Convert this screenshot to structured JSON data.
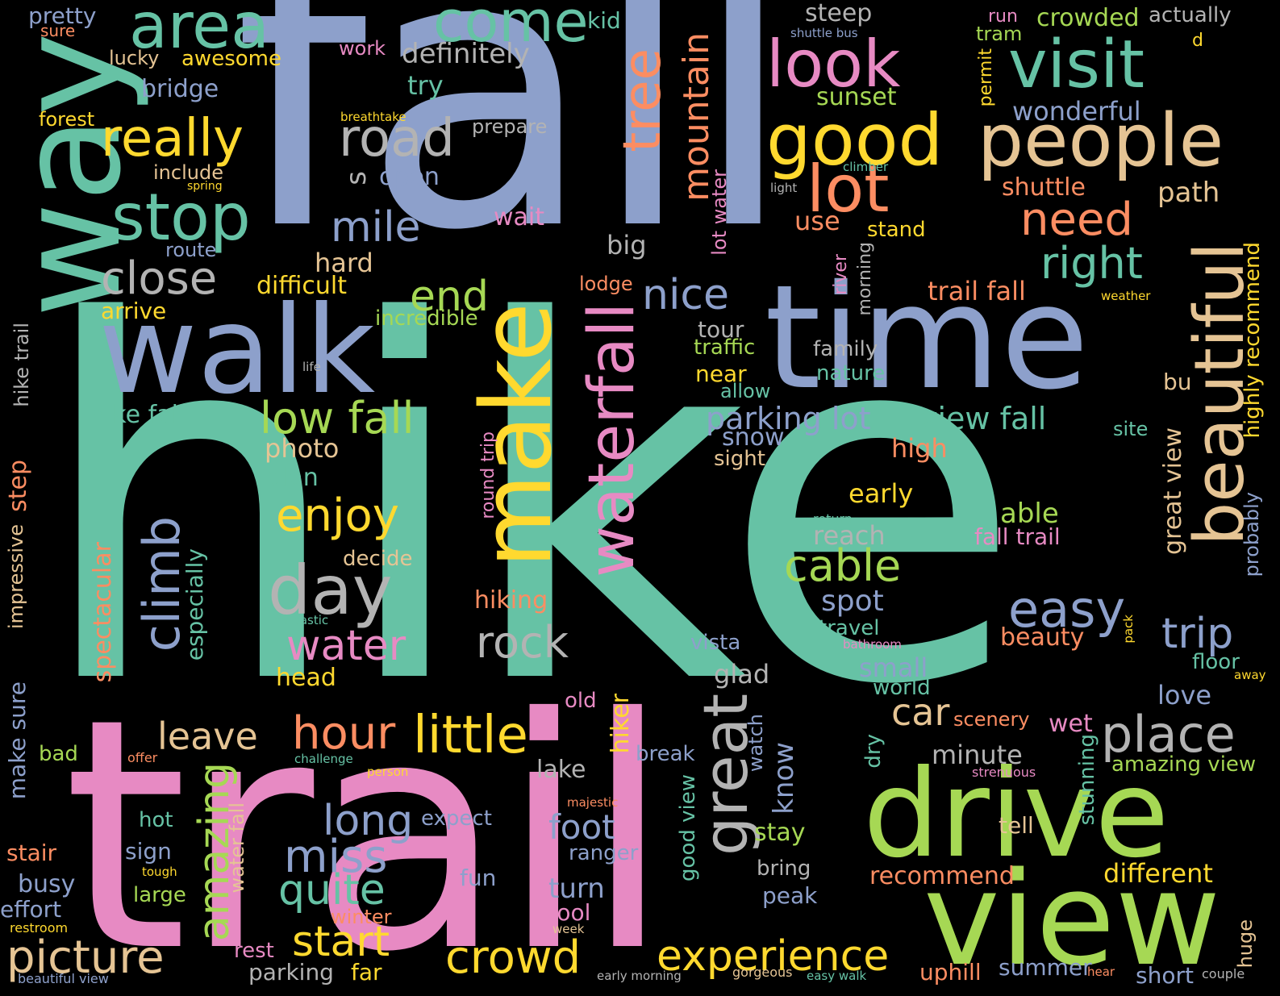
{
  "words": [
    {
      "text": "hike",
      "color": "c1"
    },
    {
      "text": "fall",
      "color": "c3"
    },
    {
      "text": "trail",
      "color": "c4"
    },
    {
      "text": "way",
      "color": "c1"
    },
    {
      "text": "walk",
      "color": "c3"
    },
    {
      "text": "time",
      "color": "c3"
    },
    {
      "text": "view",
      "color": "c5"
    },
    {
      "text": "drive",
      "color": "c5"
    },
    {
      "text": "make",
      "color": "c6"
    },
    {
      "text": "beautiful",
      "color": "c7"
    },
    {
      "text": "waterfall",
      "color": "c4"
    },
    {
      "text": "people",
      "color": "c7"
    },
    {
      "text": "area",
      "color": "c1"
    },
    {
      "text": "come",
      "color": "c1"
    },
    {
      "text": "look",
      "color": "c4"
    },
    {
      "text": "visit",
      "color": "c1"
    },
    {
      "text": "good",
      "color": "c6"
    },
    {
      "text": "lot",
      "color": "c2"
    },
    {
      "text": "stop",
      "color": "c1"
    },
    {
      "text": "really",
      "color": "c6"
    },
    {
      "text": "road",
      "color": "c8"
    },
    {
      "text": "tree",
      "color": "c2"
    },
    {
      "text": "climb",
      "color": "c3"
    },
    {
      "text": "great",
      "color": "c8"
    },
    {
      "text": "day",
      "color": "c8"
    },
    {
      "text": "place",
      "color": "c8"
    },
    {
      "text": "little",
      "color": "c6"
    },
    {
      "text": "hour",
      "color": "c2"
    },
    {
      "text": "crowd",
      "color": "c6"
    },
    {
      "text": "picture",
      "color": "c7"
    },
    {
      "text": "experience",
      "color": "c6"
    },
    {
      "text": "close",
      "color": "c8"
    },
    {
      "text": "mile",
      "color": "c3"
    },
    {
      "text": "end",
      "color": "c5"
    },
    {
      "text": "nice",
      "color": "c3"
    },
    {
      "text": "need",
      "color": "c2"
    },
    {
      "text": "right",
      "color": "c1"
    },
    {
      "text": "easy",
      "color": "c3"
    },
    {
      "text": "trip",
      "color": "c3"
    },
    {
      "text": "mountain",
      "color": "c2"
    },
    {
      "text": "low fall",
      "color": "c5"
    },
    {
      "text": "enjoy",
      "color": "c6"
    },
    {
      "text": "water",
      "color": "c4"
    },
    {
      "text": "rock",
      "color": "c8"
    },
    {
      "text": "cable",
      "color": "c5"
    },
    {
      "text": "amazing",
      "color": "c5"
    },
    {
      "text": "miss",
      "color": "c3"
    },
    {
      "text": "quite",
      "color": "c1"
    },
    {
      "text": "start",
      "color": "c6"
    },
    {
      "text": "long",
      "color": "c3"
    },
    {
      "text": "leave",
      "color": "c7"
    },
    {
      "text": "car",
      "color": "c7"
    },
    {
      "text": "foot",
      "color": "c3"
    },
    {
      "text": "parking lot",
      "color": "c3"
    },
    {
      "text": "view fall",
      "color": "c1"
    },
    {
      "text": "pretty",
      "color": "c3"
    },
    {
      "text": "sure",
      "color": "c2"
    },
    {
      "text": "lucky",
      "color": "c7"
    },
    {
      "text": "awesome",
      "color": "c6"
    },
    {
      "text": "bridge",
      "color": "c3"
    },
    {
      "text": "forest",
      "color": "c6"
    },
    {
      "text": "breathtake",
      "color": "c6"
    },
    {
      "text": "include",
      "color": "c7"
    },
    {
      "text": "spring",
      "color": "c6"
    },
    {
      "text": "route",
      "color": "c3"
    },
    {
      "text": "arrive",
      "color": "c6"
    },
    {
      "text": "difficult",
      "color": "c6"
    },
    {
      "text": "hard",
      "color": "c7"
    },
    {
      "text": "incredible",
      "color": "c5"
    },
    {
      "text": "kid",
      "color": "c1"
    },
    {
      "text": "definitely",
      "color": "c8"
    },
    {
      "text": "work",
      "color": "c4"
    },
    {
      "text": "try",
      "color": "c1"
    },
    {
      "text": "prepare",
      "color": "c8"
    },
    {
      "text": "open",
      "color": "c3"
    },
    {
      "text": "s",
      "color": "c8"
    },
    {
      "text": "wait",
      "color": "c4"
    },
    {
      "text": "big",
      "color": "c8"
    },
    {
      "text": "lodge",
      "color": "c2"
    },
    {
      "text": "steep",
      "color": "c8"
    },
    {
      "text": "shuttle bus",
      "color": "c3"
    },
    {
      "text": "run",
      "color": "c4"
    },
    {
      "text": "tram",
      "color": "c5"
    },
    {
      "text": "crowded",
      "color": "c5"
    },
    {
      "text": "actually",
      "color": "c8"
    },
    {
      "text": "d",
      "color": "c6"
    },
    {
      "text": "sunset",
      "color": "c5"
    },
    {
      "text": "lot water",
      "color": "c4"
    },
    {
      "text": "climber",
      "color": "c1"
    },
    {
      "text": "use",
      "color": "c2"
    },
    {
      "text": "stand",
      "color": "c6"
    },
    {
      "text": "light",
      "color": "c8"
    },
    {
      "text": "wonderful",
      "color": "c3"
    },
    {
      "text": "permit",
      "color": "c6"
    },
    {
      "text": "shuttle",
      "color": "c2"
    },
    {
      "text": "path",
      "color": "c7"
    },
    {
      "text": "river",
      "color": "c4"
    },
    {
      "text": "morning",
      "color": "c8"
    },
    {
      "text": "trail fall",
      "color": "c2"
    },
    {
      "text": "weather",
      "color": "c6"
    },
    {
      "text": "highly recommend",
      "color": "c6"
    },
    {
      "text": "probably",
      "color": "c3"
    },
    {
      "text": "tour",
      "color": "c8"
    },
    {
      "text": "traffic",
      "color": "c5"
    },
    {
      "text": "near",
      "color": "c6"
    },
    {
      "text": "family",
      "color": "c8"
    },
    {
      "text": "nature",
      "color": "c1"
    },
    {
      "text": "allow",
      "color": "c1"
    },
    {
      "text": "bu",
      "color": "c7"
    },
    {
      "text": "snow",
      "color": "c3"
    },
    {
      "text": "sight",
      "color": "c7"
    },
    {
      "text": "high",
      "color": "c2"
    },
    {
      "text": "site",
      "color": "c1"
    },
    {
      "text": "great view",
      "color": "c7"
    },
    {
      "text": "early",
      "color": "c6"
    },
    {
      "text": "able",
      "color": "c5"
    },
    {
      "text": "return",
      "color": "c1"
    },
    {
      "text": "reach",
      "color": "c8"
    },
    {
      "text": "fall trail",
      "color": "c4"
    },
    {
      "text": "spot",
      "color": "c3"
    },
    {
      "text": "travel",
      "color": "c1"
    },
    {
      "text": "beauty",
      "color": "c2"
    },
    {
      "text": "bathroom",
      "color": "c4"
    },
    {
      "text": "pack",
      "color": "c6"
    },
    {
      "text": "floor",
      "color": "c1"
    },
    {
      "text": "away",
      "color": "c6"
    },
    {
      "text": "small",
      "color": "c3"
    },
    {
      "text": "world",
      "color": "c1"
    },
    {
      "text": "love",
      "color": "c3"
    },
    {
      "text": "glad",
      "color": "c8"
    },
    {
      "text": "vista",
      "color": "c3"
    },
    {
      "text": "old",
      "color": "c4"
    },
    {
      "text": "watch",
      "color": "c3"
    },
    {
      "text": "hiker",
      "color": "c6"
    },
    {
      "text": "scenery",
      "color": "c2"
    },
    {
      "text": "wet",
      "color": "c4"
    },
    {
      "text": "minute",
      "color": "c8"
    },
    {
      "text": "amazing view",
      "color": "c5"
    },
    {
      "text": "strenuous",
      "color": "c4"
    },
    {
      "text": "break",
      "color": "c3"
    },
    {
      "text": "know",
      "color": "c3"
    },
    {
      "text": "dry",
      "color": "c1"
    },
    {
      "text": "stunning",
      "color": "c1"
    },
    {
      "text": "lake",
      "color": "c8"
    },
    {
      "text": "hike trail",
      "color": "c8"
    },
    {
      "text": "life",
      "color": "c8"
    },
    {
      "text": "hike fall",
      "color": "c1"
    },
    {
      "text": "photo",
      "color": "c7"
    },
    {
      "text": "plan",
      "color": "c1"
    },
    {
      "text": "step",
      "color": "c2"
    },
    {
      "text": "impressive",
      "color": "c7"
    },
    {
      "text": "spectacular",
      "color": "c2"
    },
    {
      "text": "especially",
      "color": "c1"
    },
    {
      "text": "decide",
      "color": "c7"
    },
    {
      "text": "round trip",
      "color": "c4"
    },
    {
      "text": "hiking",
      "color": "c2"
    },
    {
      "text": "fantastic",
      "color": "c1"
    },
    {
      "text": "head",
      "color": "c6"
    },
    {
      "text": "make sure",
      "color": "c3"
    },
    {
      "text": "bad",
      "color": "c5"
    },
    {
      "text": "offer",
      "color": "c2"
    },
    {
      "text": "challenge",
      "color": "c1"
    },
    {
      "text": "person",
      "color": "c6"
    },
    {
      "text": "majestic",
      "color": "c2"
    },
    {
      "text": "expect",
      "color": "c3"
    },
    {
      "text": "hot",
      "color": "c1"
    },
    {
      "text": "sign",
      "color": "c3"
    },
    {
      "text": "tough",
      "color": "c6"
    },
    {
      "text": "large",
      "color": "c5"
    },
    {
      "text": "water fall",
      "color": "c7"
    },
    {
      "text": "ranger",
      "color": "c3"
    },
    {
      "text": "fun",
      "color": "c3"
    },
    {
      "text": "turn",
      "color": "c3"
    },
    {
      "text": "cool",
      "color": "c4"
    },
    {
      "text": "winter",
      "color": "c2"
    },
    {
      "text": "week",
      "color": "c7"
    },
    {
      "text": "good view",
      "color": "c1"
    },
    {
      "text": "stay",
      "color": "c5"
    },
    {
      "text": "bring",
      "color": "c8"
    },
    {
      "text": "peak",
      "color": "c3"
    },
    {
      "text": "recommend",
      "color": "c2"
    },
    {
      "text": "tell",
      "color": "c7"
    },
    {
      "text": "different",
      "color": "c6"
    },
    {
      "text": "huge",
      "color": "c7"
    },
    {
      "text": "stair",
      "color": "c2"
    },
    {
      "text": "busy",
      "color": "c3"
    },
    {
      "text": "effort",
      "color": "c3"
    },
    {
      "text": "restroom",
      "color": "c6"
    },
    {
      "text": "beautiful view",
      "color": "c3"
    },
    {
      "text": "rest",
      "color": "c4"
    },
    {
      "text": "parking",
      "color": "c8"
    },
    {
      "text": "far",
      "color": "c6"
    },
    {
      "text": "early morning",
      "color": "c8"
    },
    {
      "text": "gorgeous",
      "color": "c7"
    },
    {
      "text": "easy walk",
      "color": "c1"
    },
    {
      "text": "uphill",
      "color": "c2"
    },
    {
      "text": "summer",
      "color": "c3"
    },
    {
      "text": "hear",
      "color": "c2"
    },
    {
      "text": "short",
      "color": "c3"
    },
    {
      "text": "couple",
      "color": "c8"
    }
  ]
}
